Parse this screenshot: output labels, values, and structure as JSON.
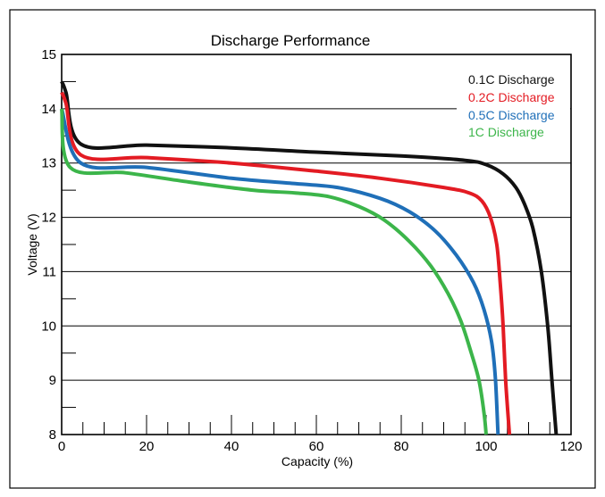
{
  "chart_data": {
    "type": "line",
    "title": "Discharge Performance",
    "xlabel": "Capacity (%)",
    "ylabel": "Voltage (V)",
    "xlim": [
      0,
      120
    ],
    "ylim": [
      8,
      15
    ],
    "x_ticks": [
      0,
      20,
      40,
      60,
      80,
      100,
      120
    ],
    "y_ticks": [
      8,
      9,
      10,
      11,
      12,
      13,
      14,
      15
    ],
    "grid": "horizontal",
    "legend_position": "top-right",
    "series": [
      {
        "name": "0.1C Discharge",
        "color": "#111111",
        "points": [
          [
            0,
            14.5
          ],
          [
            1,
            14.3
          ],
          [
            4.5,
            13.35
          ],
          [
            20,
            13.33
          ],
          [
            40,
            13.28
          ],
          [
            60,
            13.2
          ],
          [
            80,
            13.13
          ],
          [
            95,
            13.05
          ],
          [
            100,
            12.97
          ],
          [
            104,
            12.8
          ],
          [
            107,
            12.55
          ],
          [
            109,
            12.25
          ],
          [
            111,
            11.8
          ],
          [
            113,
            11.0
          ],
          [
            114.5,
            10.0
          ],
          [
            115.5,
            9.0
          ],
          [
            116.5,
            8.0
          ]
        ]
      },
      {
        "name": "0.2C Discharge",
        "color": "#e31b23",
        "points": [
          [
            0,
            14.3
          ],
          [
            1,
            14.1
          ],
          [
            4.5,
            13.15
          ],
          [
            20,
            13.1
          ],
          [
            40,
            13.0
          ],
          [
            60,
            12.85
          ],
          [
            75,
            12.72
          ],
          [
            90,
            12.55
          ],
          [
            96,
            12.45
          ],
          [
            99,
            12.3
          ],
          [
            101,
            12.0
          ],
          [
            102.5,
            11.5
          ],
          [
            103.3,
            10.8
          ],
          [
            104,
            10.0
          ],
          [
            104.6,
            9.0
          ],
          [
            105.5,
            8.0
          ]
        ]
      },
      {
        "name": "0.5C Discharge",
        "color": "#1f6fb8",
        "points": [
          [
            0,
            14.0
          ],
          [
            4.5,
            13.0
          ],
          [
            20,
            12.92
          ],
          [
            40,
            12.72
          ],
          [
            55,
            12.62
          ],
          [
            65,
            12.55
          ],
          [
            75,
            12.35
          ],
          [
            82,
            12.1
          ],
          [
            88,
            11.75
          ],
          [
            93,
            11.3
          ],
          [
            97,
            10.8
          ],
          [
            99.5,
            10.3
          ],
          [
            101.3,
            9.7
          ],
          [
            102.2,
            9.0
          ],
          [
            102.8,
            8.0
          ]
        ]
      },
      {
        "name": "1C Discharge",
        "color": "#3cb54a",
        "points": [
          [
            0,
            14.0
          ],
          [
            2,
            12.92
          ],
          [
            15,
            12.82
          ],
          [
            30,
            12.65
          ],
          [
            45,
            12.5
          ],
          [
            55,
            12.45
          ],
          [
            63,
            12.38
          ],
          [
            70,
            12.2
          ],
          [
            76,
            11.95
          ],
          [
            82,
            11.55
          ],
          [
            87,
            11.1
          ],
          [
            91,
            10.6
          ],
          [
            94,
            10.1
          ],
          [
            96.5,
            9.5
          ],
          [
            98.3,
            9.0
          ],
          [
            99.5,
            8.4
          ],
          [
            100,
            8.0
          ]
        ]
      }
    ]
  }
}
